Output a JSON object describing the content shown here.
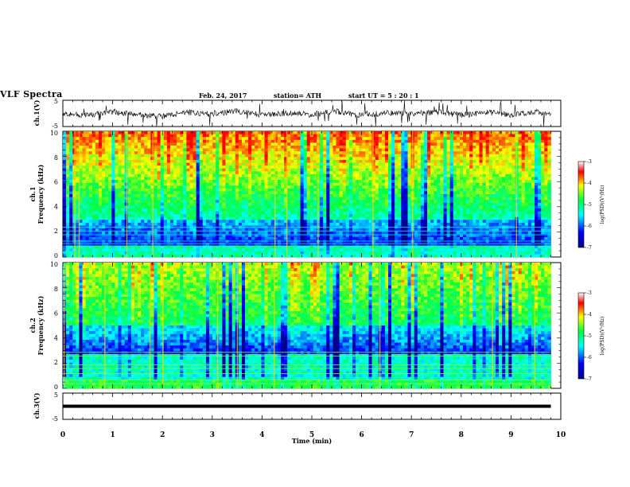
{
  "header": {
    "title": "VLF Spectra",
    "date": "Feb. 24, 2017",
    "station": "station= ATH",
    "start": "start  UT  =   5  : 20 : 1"
  },
  "colors": {
    "low": "#00008f",
    "blue": "#0000ff",
    "cyan": "#00ffff",
    "green": "#00ff40",
    "yellow": "#ffff00",
    "red": "#ff0000"
  },
  "chart_data": [
    {
      "type": "line",
      "panel": "ch1-waveform",
      "ylabel": "ch.1(V)",
      "ylim": [
        -5,
        5
      ],
      "y_ticklabels": [
        "5",
        "-5"
      ],
      "x": [
        0,
        0.5,
        1,
        1.5,
        2,
        2.5,
        3,
        3.5,
        4,
        4.5,
        5,
        5.5,
        6,
        6.5,
        7,
        7.5,
        8,
        8.5,
        9,
        9.5,
        9.8
      ],
      "y": [
        0,
        -0.8,
        0.6,
        -0.5,
        -1.2,
        0.4,
        -0.3,
        0.9,
        -0.6,
        0.2,
        -0.4,
        0.7,
        -0.9,
        0.3,
        -0.2,
        0.5,
        -0.7,
        0.4,
        -0.5,
        0.6,
        -0.3
      ]
    },
    {
      "type": "heatmap",
      "panel": "ch1-spectrogram",
      "ylabel": "ch.1 Frequency (kHz)",
      "ylim": [
        0,
        10
      ],
      "y_ticklabels": [
        "0",
        "2",
        "4",
        "6",
        "8",
        "10"
      ],
      "colorbar": {
        "label": "log(PSD)(V²/Hz)",
        "range": [
          -7,
          -3
        ],
        "ticklabels": [
          "-3",
          "-4",
          "-5",
          "-6",
          "-7"
        ]
      },
      "x_range_min": [
        0,
        9.8
      ],
      "description_levels": "log PSD rises with frequency: about -6.5 below 2 kHz, -5 near 4 kHz, -3.5 above 7 kHz"
    },
    {
      "type": "heatmap",
      "panel": "ch2-spectrogram",
      "ylabel": "ch.2 Frequency (kHz)",
      "ylim": [
        0,
        10
      ],
      "y_ticklabels": [
        "0",
        "2",
        "4",
        "6",
        "8",
        "10"
      ],
      "colorbar": {
        "label": "log(PSD)(V²/Hz)",
        "range": [
          -7,
          -3
        ],
        "ticklabels": [
          "-3",
          "-4",
          "-5",
          "-6",
          "-7"
        ]
      },
      "x_range_min": [
        0,
        9.8
      ]
    },
    {
      "type": "line",
      "panel": "ch3-waveform",
      "ylabel": "ch.3(V)",
      "ylim": [
        -5,
        5
      ],
      "y_ticklabels": [
        "5",
        "-5"
      ],
      "x": [
        0,
        9.8
      ],
      "y": [
        0,
        0
      ]
    }
  ],
  "xaxis": {
    "label": "Time  (min)",
    "ticklabels": [
      "0",
      "1",
      "2",
      "3",
      "4",
      "5",
      "6",
      "7",
      "8",
      "9",
      "10"
    ],
    "range": [
      0,
      10
    ]
  }
}
